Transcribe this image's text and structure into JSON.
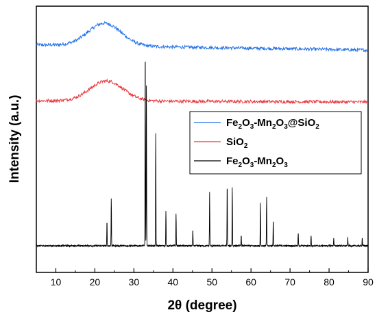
{
  "chart_data": {
    "type": "line",
    "xlabel": "2θ (degree)",
    "ylabel": "Intensity (a.u.)",
    "xlim": [
      5,
      90
    ],
    "x_ticks": [
      10,
      20,
      30,
      40,
      50,
      60,
      70,
      80,
      90
    ],
    "y_ticks_shown": false,
    "legend_position": "center-right",
    "series": [
      {
        "name": "Fe2O3-Mn2O3@SiO2",
        "color": "#1f6fe6",
        "kind": "broad-hump",
        "baseline": 0.855,
        "hump_center": 22.5,
        "hump_width": 6,
        "hump_height": 0.085,
        "end_value": 0.835
      },
      {
        "name": "SiO2",
        "color": "#e8383d",
        "kind": "broad-hump",
        "baseline": 0.645,
        "hump_center": 23,
        "hump_width": 6,
        "hump_height": 0.075,
        "end_value": 0.64
      },
      {
        "name": "Fe2O3-Mn2O3",
        "color": "#000000",
        "kind": "peaks",
        "baseline": 0.1,
        "peaks": [
          {
            "x": 23.1,
            "y": 0.19
          },
          {
            "x": 24.2,
            "y": 0.28
          },
          {
            "x": 32.9,
            "y": 0.85
          },
          {
            "x": 33.2,
            "y": 0.7
          },
          {
            "x": 35.6,
            "y": 0.52
          },
          {
            "x": 38.2,
            "y": 0.23
          },
          {
            "x": 40.8,
            "y": 0.22
          },
          {
            "x": 45.1,
            "y": 0.16
          },
          {
            "x": 49.4,
            "y": 0.3
          },
          {
            "x": 53.9,
            "y": 0.33
          },
          {
            "x": 55.2,
            "y": 0.32
          },
          {
            "x": 57.5,
            "y": 0.14
          },
          {
            "x": 62.4,
            "y": 0.26
          },
          {
            "x": 64.0,
            "y": 0.28
          },
          {
            "x": 65.7,
            "y": 0.2
          },
          {
            "x": 72.1,
            "y": 0.15
          },
          {
            "x": 75.4,
            "y": 0.14
          },
          {
            "x": 81.2,
            "y": 0.13
          },
          {
            "x": 84.8,
            "y": 0.13
          },
          {
            "x": 88.5,
            "y": 0.13
          }
        ]
      }
    ]
  },
  "legend": {
    "entries": [
      {
        "base": "Fe",
        "parts": [
          [
            "Fe",
            ""
          ],
          [
            "2",
            "sub"
          ],
          [
            "O",
            ""
          ],
          [
            "3",
            "sub"
          ],
          [
            "-Mn",
            ""
          ],
          [
            "2",
            "sub"
          ],
          [
            "O",
            ""
          ],
          [
            "3",
            "sub"
          ],
          [
            "@SiO",
            ""
          ],
          [
            "2",
            "sub"
          ]
        ],
        "color": "#1f6fe6"
      },
      {
        "base": "Si",
        "parts": [
          [
            "SiO",
            ""
          ],
          [
            "2",
            "sub"
          ]
        ],
        "color": "#e8383d"
      },
      {
        "base": "Fe",
        "parts": [
          [
            "Fe",
            ""
          ],
          [
            "2",
            "sub"
          ],
          [
            "O",
            ""
          ],
          [
            "3",
            "sub"
          ],
          [
            "-Mn",
            ""
          ],
          [
            "2",
            "sub"
          ],
          [
            "O",
            ""
          ],
          [
            "3",
            "sub"
          ]
        ],
        "color": "#000000"
      }
    ]
  }
}
